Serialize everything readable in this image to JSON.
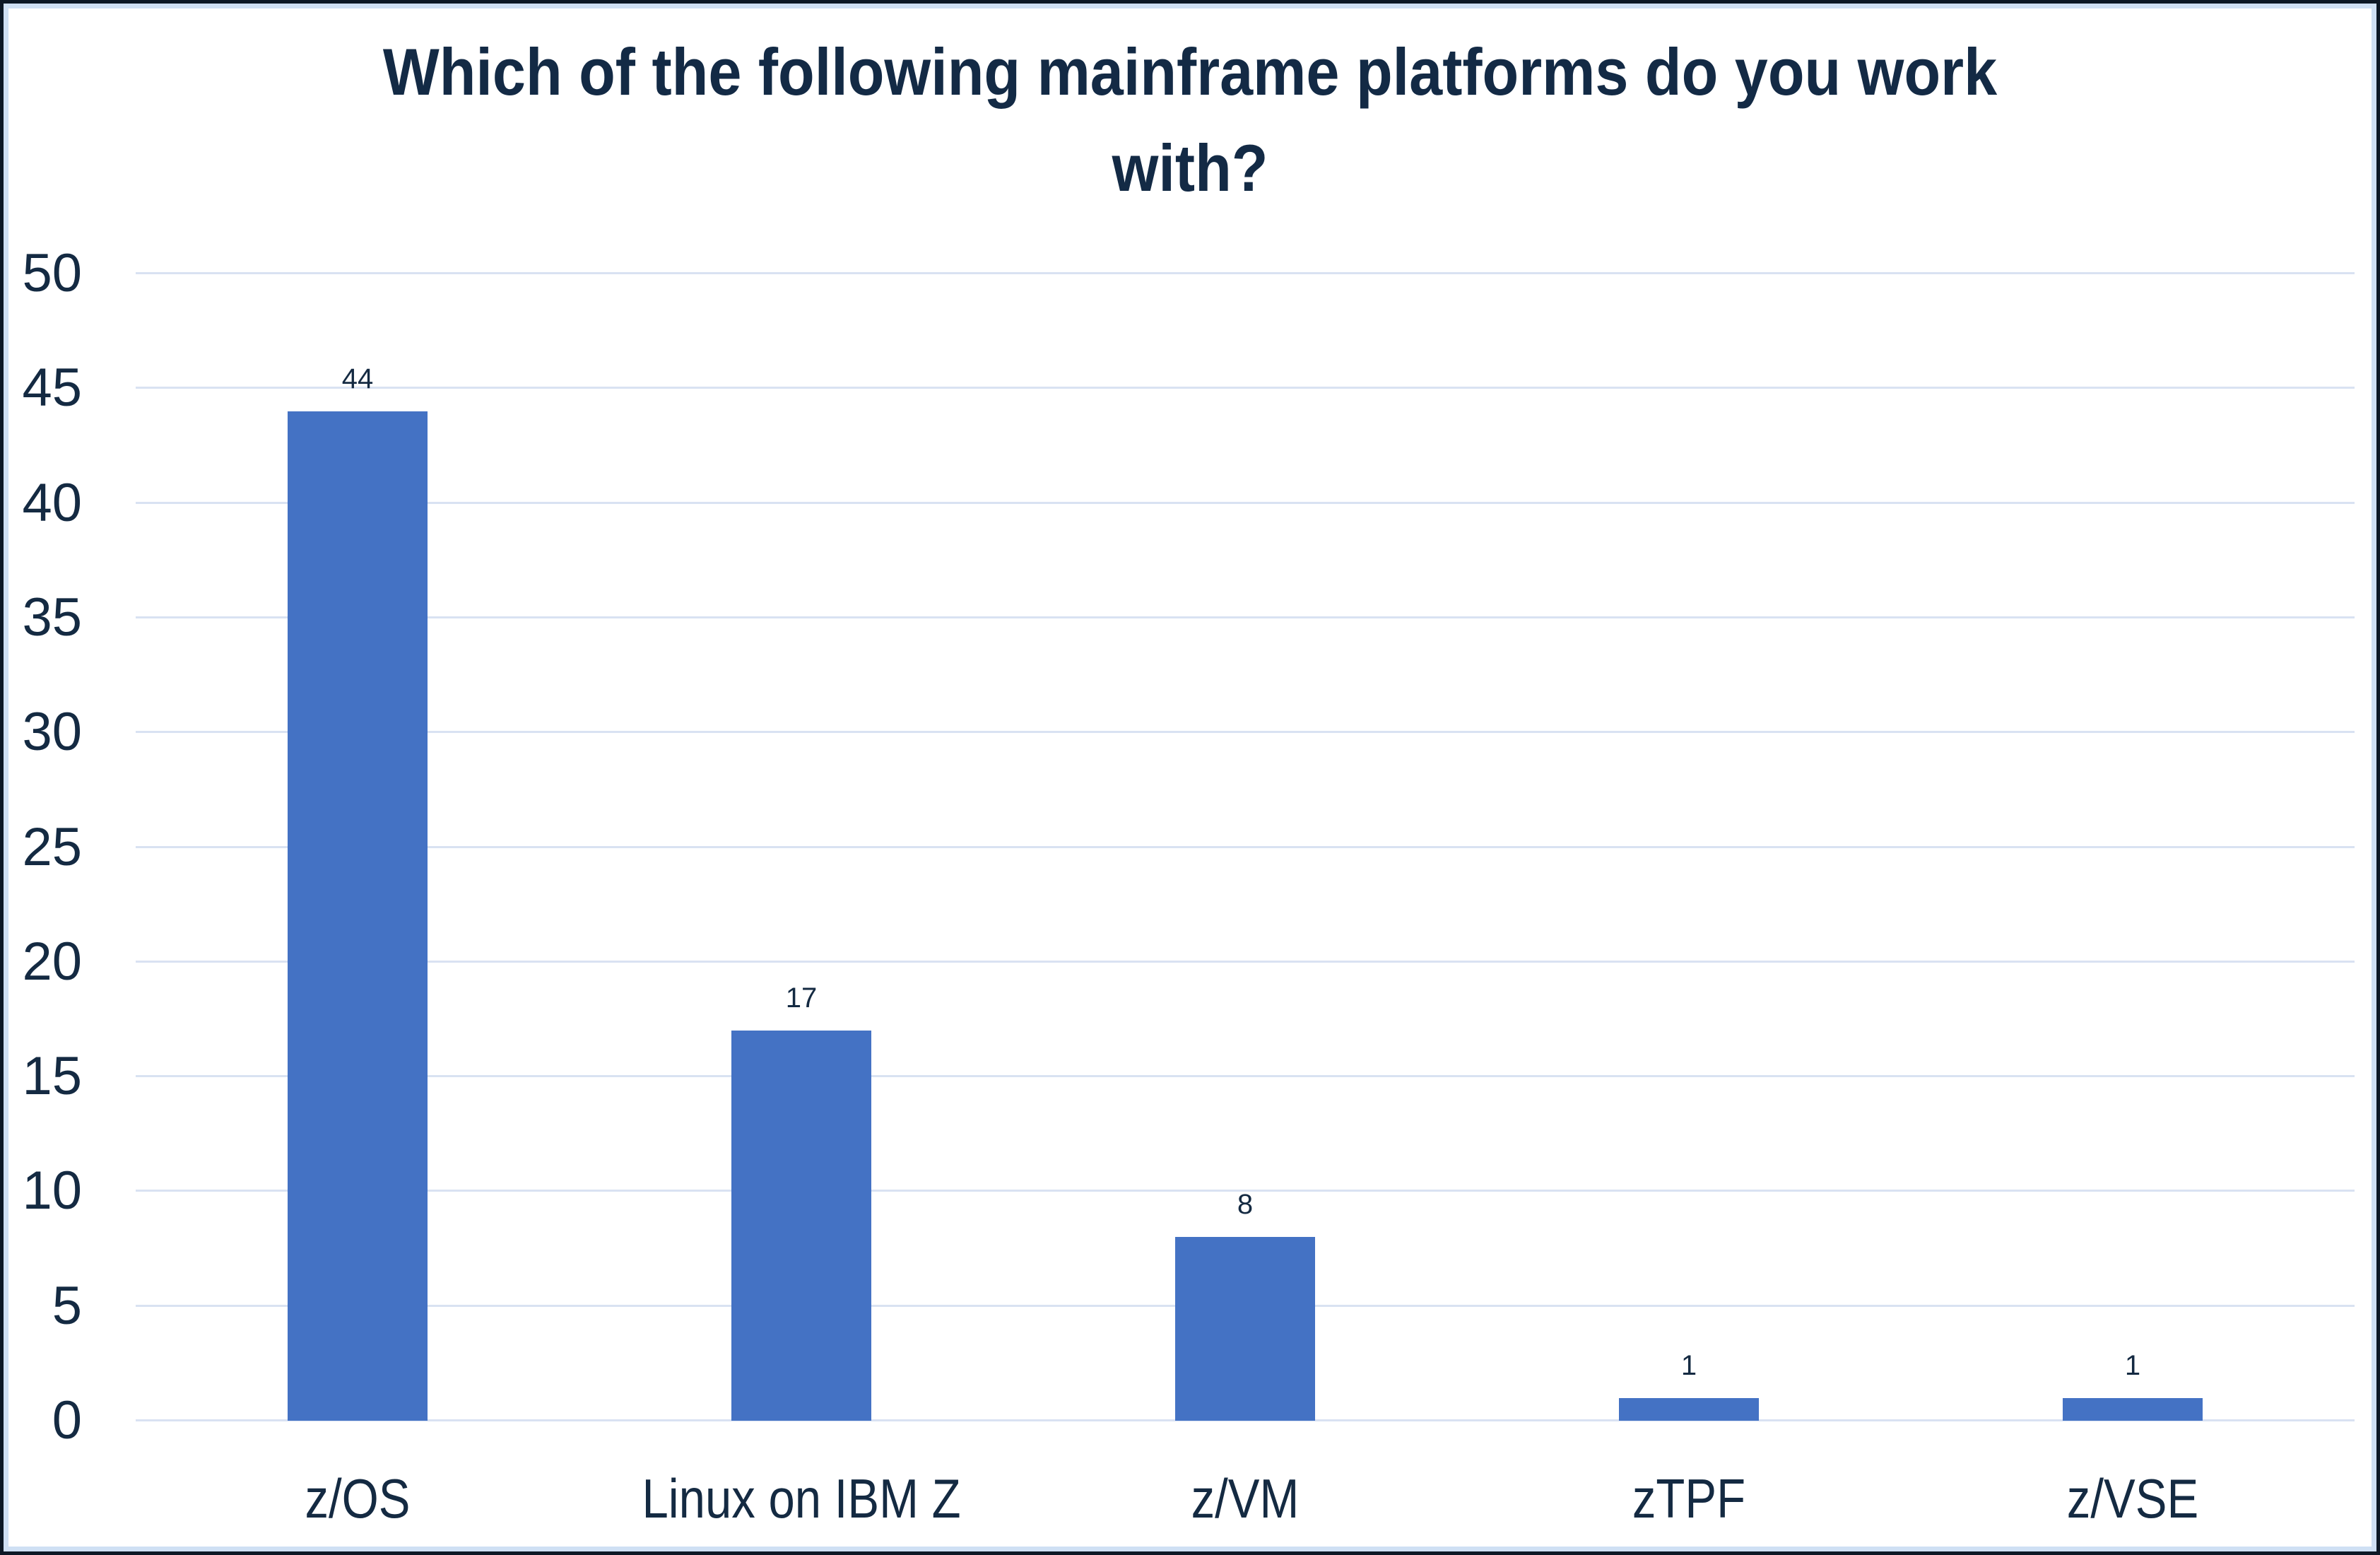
{
  "chart_data": {
    "type": "bar",
    "title": "Which of the following mainframe platforms do you work with?",
    "categories": [
      "z/OS",
      "Linux on IBM Z",
      "z/VM",
      "zTPF",
      "z/VSE"
    ],
    "values": [
      44,
      17,
      8,
      1,
      1
    ],
    "data_labels": [
      "44",
      "17",
      "8",
      "1",
      "1"
    ],
    "xlabel": "",
    "ylabel": "",
    "ylim": [
      0,
      50
    ],
    "yticks": [
      0,
      5,
      10,
      15,
      20,
      25,
      30,
      35,
      40,
      45,
      50
    ],
    "grid": "horizontal",
    "legend_position": "none",
    "colors": {
      "bar_fill": "#4472c4",
      "gridline": "#d9e2f2",
      "text": "#142a42",
      "title_text": "#132a45",
      "inner_border": "#cfe0f4",
      "outer_border": "#0d1826",
      "background": "#ffffff"
    }
  }
}
